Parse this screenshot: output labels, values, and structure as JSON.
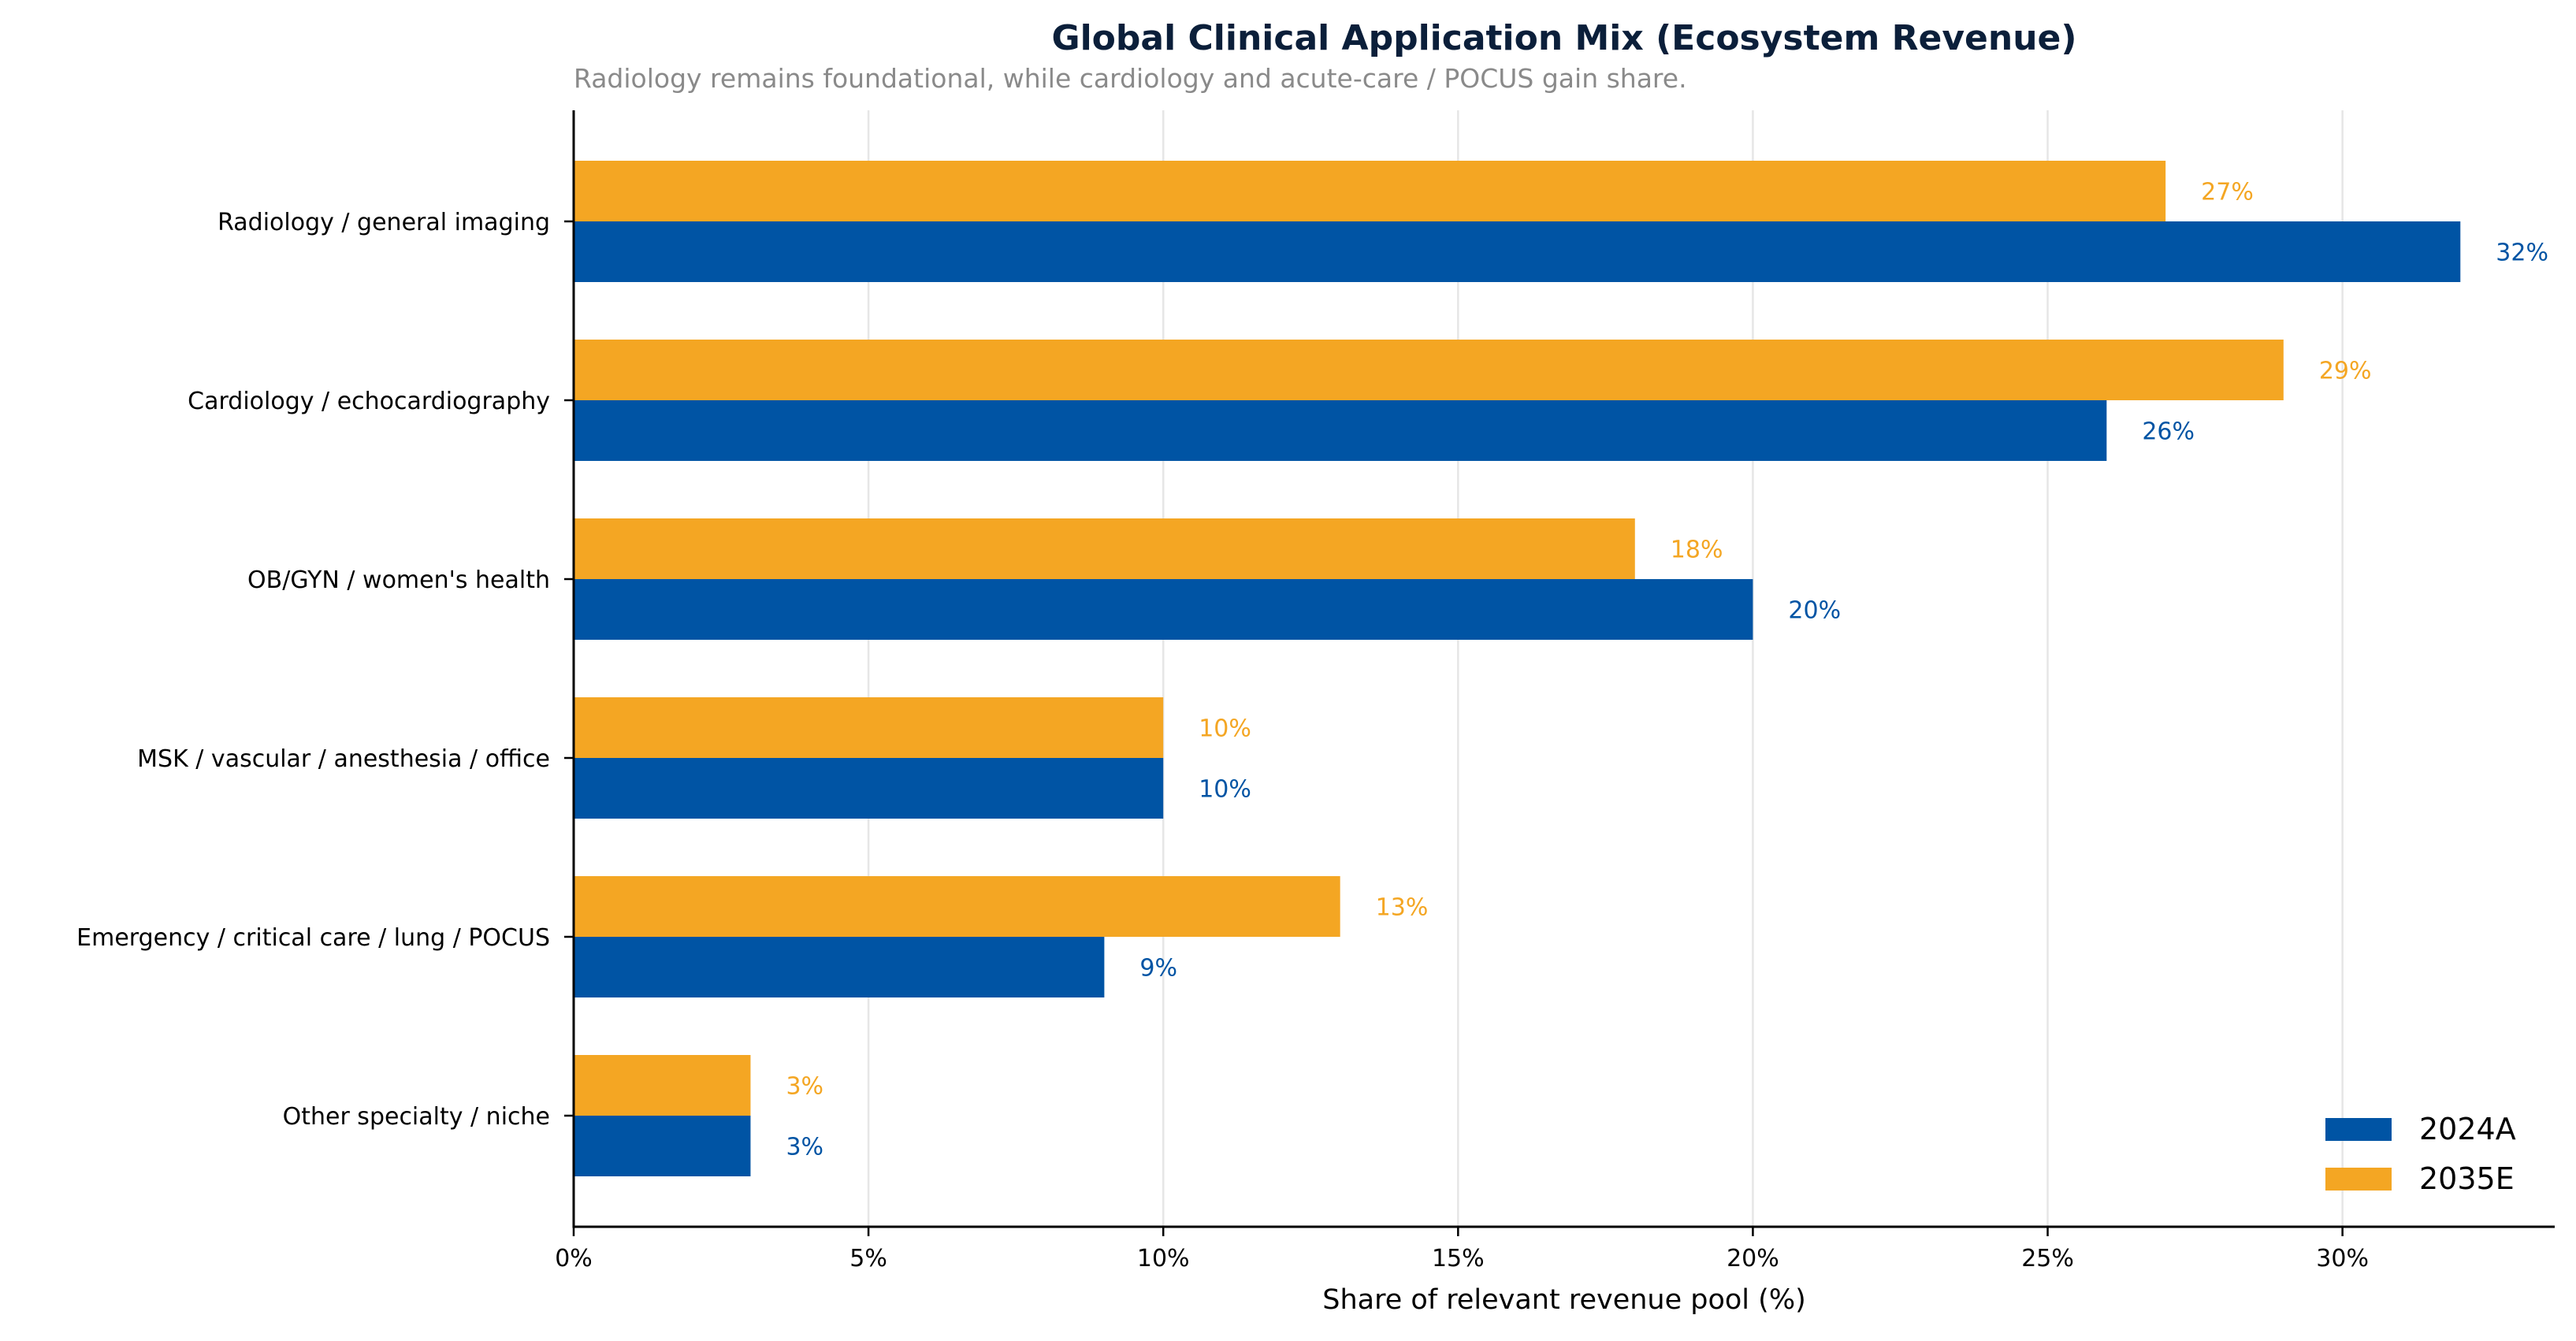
{
  "chart_data": {
    "type": "bar",
    "orientation": "horizontal",
    "title": "Global Clinical Application Mix (Ecosystem Revenue)",
    "subtitle": "Radiology remains foundational, while cardiology and acute-care / POCUS gain share.",
    "xlabel": "Share of relevant revenue pool (%)",
    "ylabel": "",
    "xlim": [
      0,
      33.6
    ],
    "xticks": [
      0,
      5,
      10,
      15,
      20,
      25,
      30
    ],
    "xtick_labels": [
      "0%",
      "5%",
      "10%",
      "15%",
      "20%",
      "25%",
      "30%"
    ],
    "grid": "vertical",
    "legend_position": "lower-right",
    "categories": [
      "Radiology / general imaging",
      "Cardiology / echocardiography",
      "OB/GYN / women's health",
      "MSK / vascular / anesthesia / office",
      "Emergency / critical care / lung / POCUS",
      "Other specialty / niche"
    ],
    "series": [
      {
        "name": "2024A",
        "color": "#0054a4",
        "values": [
          32,
          26,
          20,
          10,
          9,
          3
        ],
        "labels": [
          "32%",
          "26%",
          "20%",
          "10%",
          "9%",
          "3%"
        ]
      },
      {
        "name": "2035E",
        "color": "#f4a623",
        "values": [
          27,
          29,
          18,
          10,
          13,
          3
        ],
        "labels": [
          "27%",
          "29%",
          "18%",
          "10%",
          "13%",
          "3%"
        ]
      }
    ]
  },
  "colors": {
    "title": "#0b1f3a",
    "subtitle": "#8a8a8a",
    "grid": "#e6e6e6",
    "axis": "#000000"
  }
}
